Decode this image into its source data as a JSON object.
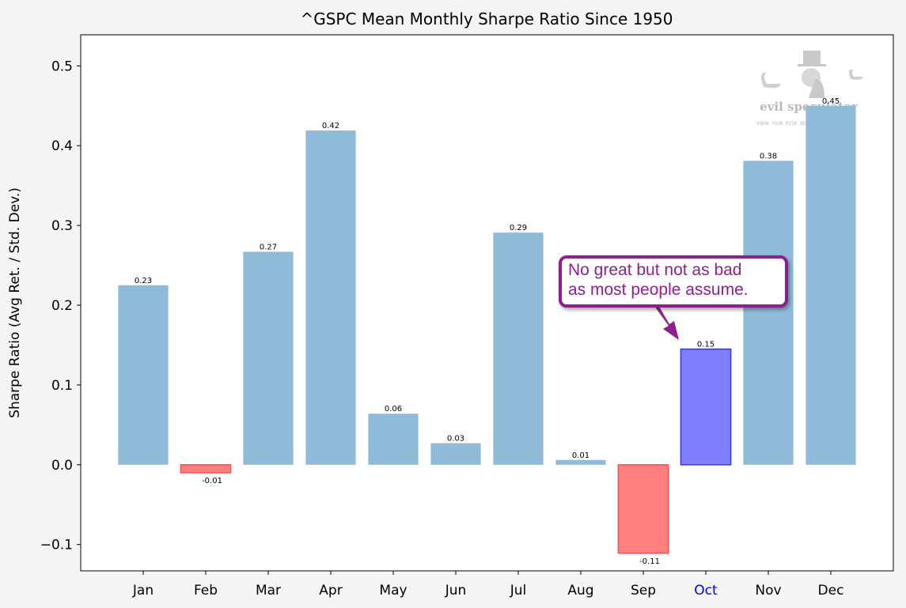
{
  "chart_data": {
    "type": "bar",
    "title": "^GSPC Mean Monthly Sharpe Ratio Since 1950",
    "xlabel": "",
    "ylabel": "Sharpe Ratio (Avg Ret. / Std. Dev.)",
    "ylim": [
      -0.133,
      0.539
    ],
    "yticks": [
      -0.1,
      0.0,
      0.1,
      0.2,
      0.3,
      0.4,
      0.5
    ],
    "ytick_labels": [
      "−0.1",
      "0.0",
      "0.1",
      "0.2",
      "0.3",
      "0.4",
      "0.5"
    ],
    "categories": [
      "Jan",
      "Feb",
      "Mar",
      "Apr",
      "May",
      "Jun",
      "Jul",
      "Aug",
      "Sep",
      "Oct",
      "Nov",
      "Dec"
    ],
    "values": [
      0.225,
      -0.01,
      0.267,
      0.419,
      0.064,
      0.027,
      0.291,
      0.006,
      -0.111,
      0.145,
      0.381,
      0.45
    ],
    "data_labels": [
      "0.23",
      "-0.01",
      "0.27",
      "0.42",
      "0.06",
      "0.03",
      "0.29",
      "0.01",
      "-0.11",
      "0.15",
      "0.38",
      "0.45"
    ],
    "highlight_category": "Oct",
    "grid": false,
    "colors": {
      "positive": "#8fbbd9",
      "negative": "#ff7f7f",
      "negative_edge": "#ff4d4d",
      "highlight": "#7f7fff",
      "highlight_edge": "#3333ff",
      "highlight_label": "#0000ff"
    },
    "annotation": {
      "text_line1": "No great but not as bad",
      "text_line2": "as most people assume.",
      "target": "Oct",
      "color": "#8e1f8e"
    }
  },
  "watermark": {
    "brand": "evil speculator",
    "tagline": "KNOW YOUR RISK BEFORE YOU TRADE"
  }
}
